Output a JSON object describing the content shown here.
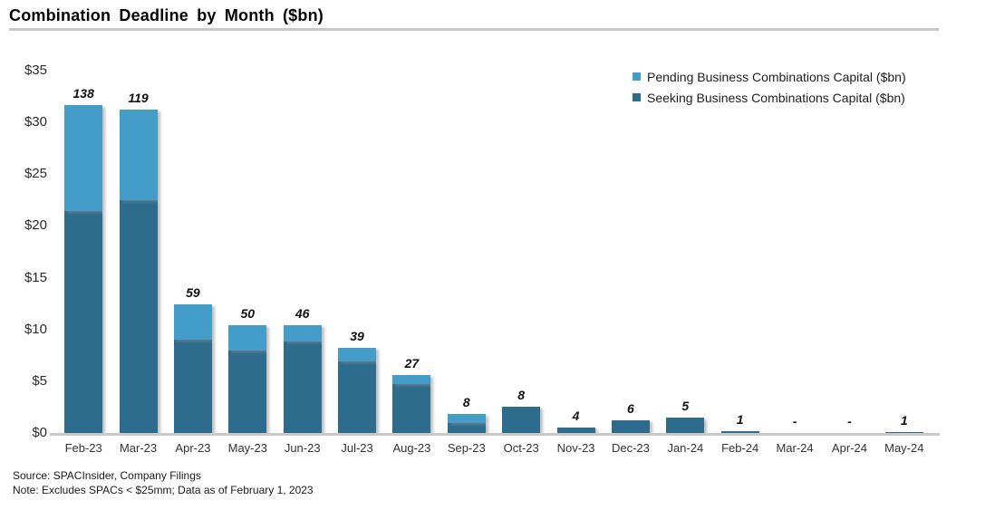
{
  "title": "Combination Deadline by Month ($bn)",
  "legend": {
    "pending_label": "Pending Business Combinations Capital ($bn)",
    "seeking_label": "Seeking Business Combinations Capital ($bn)"
  },
  "footer": {
    "source": "Source: SPACInsider, Company Filings",
    "note": "Note: Excludes SPACs < $25mm; Data as of February 1, 2023"
  },
  "colors": {
    "pending": "#449DC9",
    "seeking": "#2D6C8C",
    "axis": "#C9C9C9",
    "title_rule": "#C6C6C6"
  },
  "chart_data": {
    "type": "bar",
    "stacked": true,
    "title": "Combination Deadline by Month ($bn)",
    "xlabel": "",
    "ylabel": "",
    "ylim": [
      0,
      35
    ],
    "ytick_step": 5,
    "ytick_labels": [
      "$0",
      "$5",
      "$10",
      "$15",
      "$20",
      "$25",
      "$30",
      "$35"
    ],
    "grid": false,
    "legend_position": "top-right",
    "categories": [
      "Feb-23",
      "Mar-23",
      "Apr-23",
      "May-23",
      "Jun-23",
      "Jul-23",
      "Aug-23",
      "Sep-23",
      "Oct-23",
      "Nov-23",
      "Dec-23",
      "Jan-24",
      "Feb-24",
      "Mar-24",
      "Apr-24",
      "May-24"
    ],
    "series": [
      {
        "name": "Seeking Business Combinations Capital ($bn)",
        "color_key": "seeking",
        "values": [
          21.4,
          22.5,
          9.0,
          8.0,
          8.8,
          6.9,
          4.7,
          1.0,
          2.5,
          0.5,
          1.2,
          1.5,
          0.2,
          0,
          0,
          0.1
        ]
      },
      {
        "name": "Pending Business Combinations Capital ($bn)",
        "color_key": "pending",
        "values": [
          10.3,
          8.7,
          3.4,
          2.4,
          1.6,
          1.3,
          0.9,
          0.8,
          0,
          0,
          0,
          0,
          0,
          0,
          0,
          0
        ]
      }
    ],
    "bar_count_labels": [
      "138",
      "119",
      "59",
      "50",
      "46",
      "39",
      "27",
      "8",
      "8",
      "4",
      "6",
      "5",
      "1",
      "-",
      "-",
      "1"
    ]
  }
}
